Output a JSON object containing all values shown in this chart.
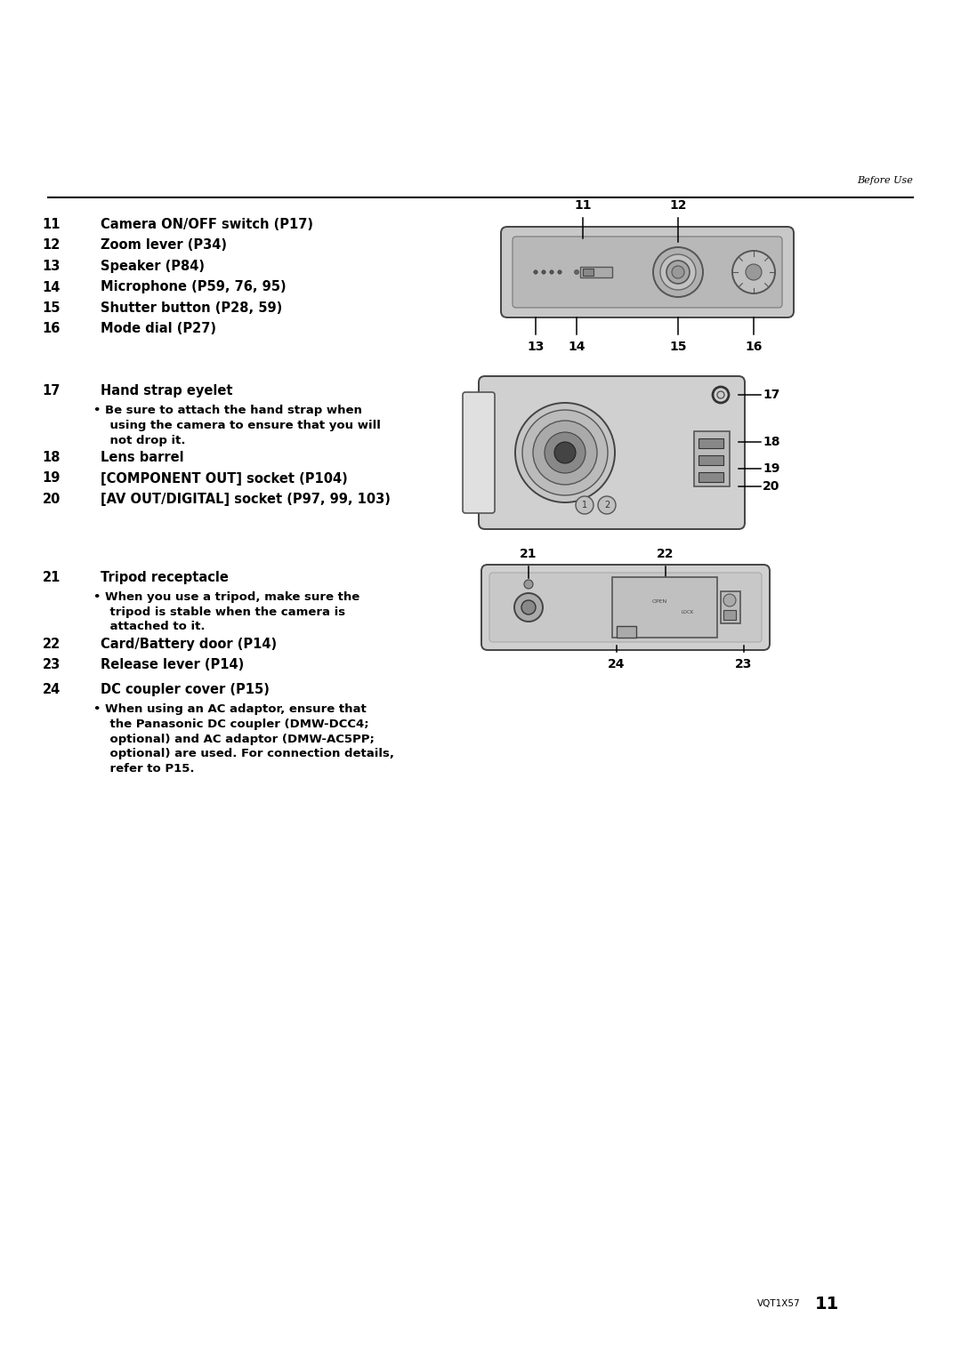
{
  "bg_color": "#ffffff",
  "page_header": "Before Use",
  "page_footer_code": "VQT1X57",
  "page_footer_num": "11",
  "section1": [
    [
      "11",
      "Camera ON/OFF switch (P17)"
    ],
    [
      "12",
      "Zoom lever (P34)"
    ],
    [
      "13",
      "Speaker (P84)"
    ],
    [
      "14",
      "Microphone (P59, 76, 95)"
    ],
    [
      "15",
      "Shutter button (P28, 59)"
    ],
    [
      "16",
      "Mode dial (P27)"
    ]
  ],
  "section2": [
    [
      "17",
      "Hand strap eyelet"
    ],
    [
      "b",
      "  Be sure to attach the hand strap when\n    using the camera to ensure that you will\n    not drop it."
    ],
    [
      "18",
      "Lens barrel"
    ],
    [
      "19",
      "[COMPONENT OUT] socket (P104)"
    ],
    [
      "20",
      "[AV OUT/DIGITAL] socket (P97, 99, 103)"
    ]
  ],
  "section3": [
    [
      "21",
      "Tripod receptacle"
    ],
    [
      "b",
      "  When you use a tripod, make sure the\n    tripod is stable when the camera is\n    attached to it."
    ],
    [
      "22",
      "Card/Battery door (P14)"
    ],
    [
      "23",
      "Release lever (P14)"
    ]
  ],
  "section4": [
    [
      "24",
      "DC coupler cover (P15)"
    ],
    [
      "b",
      "  When using an AC adaptor, ensure that\n    the Panasonic DC coupler (DMW-DCC4;\n    optional) and AC adaptor (DMW-AC5PP;\n    optional) are used. For connection details,\n    refer to P15."
    ]
  ]
}
